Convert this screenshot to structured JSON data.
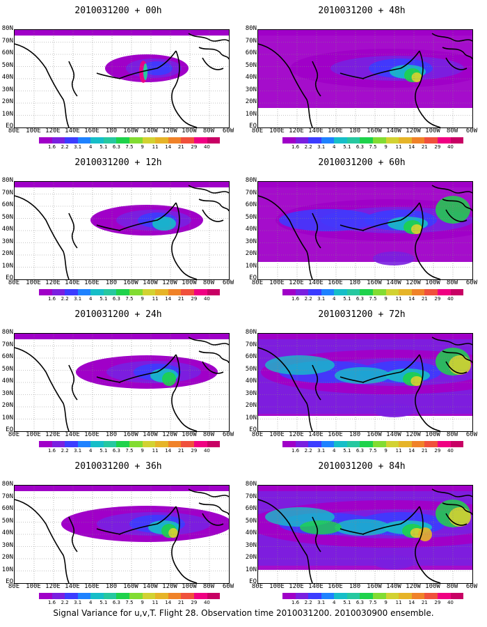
{
  "footer": "Signal Variance for u,v,T. Flight 28. Observation time 2010031200. 2010030900 ensemble.",
  "lat_labels": [
    "80N",
    "70N",
    "60N",
    "50N",
    "40N",
    "30N",
    "20N",
    "10N",
    "EQ"
  ],
  "lon_labels": [
    "80E",
    "100E",
    "120E",
    "140E",
    "160E",
    "180",
    "160W",
    "140W",
    "120W",
    "100W",
    "80W",
    "60W"
  ],
  "colorbar": {
    "labels": [
      "1.6",
      "2.2",
      "3.1",
      "4",
      "5.1",
      "6.3",
      "7.5",
      "9",
      "11",
      "14",
      "21",
      "29",
      "40"
    ],
    "colors": [
      "#a000c8",
      "#7a1fe0",
      "#3c3cff",
      "#1e82ff",
      "#16bec8",
      "#26c8a0",
      "#1ed24b",
      "#82dc32",
      "#d2d232",
      "#e6b428",
      "#f08228",
      "#f0503c",
      "#f00082",
      "#c80064"
    ]
  },
  "panels": [
    {
      "title": "2010031200 + 00h",
      "intensity": 0
    },
    {
      "title": "2010031200 + 12h",
      "intensity": 1
    },
    {
      "title": "2010031200 + 24h",
      "intensity": 2
    },
    {
      "title": "2010031200 + 36h",
      "intensity": 3
    },
    {
      "title": "2010031200 + 48h",
      "intensity": 4
    },
    {
      "title": "2010031200 + 60h",
      "intensity": 5
    },
    {
      "title": "2010031200 + 72h",
      "intensity": 6
    },
    {
      "title": "2010031200 + 84h",
      "intensity": 7
    }
  ]
}
